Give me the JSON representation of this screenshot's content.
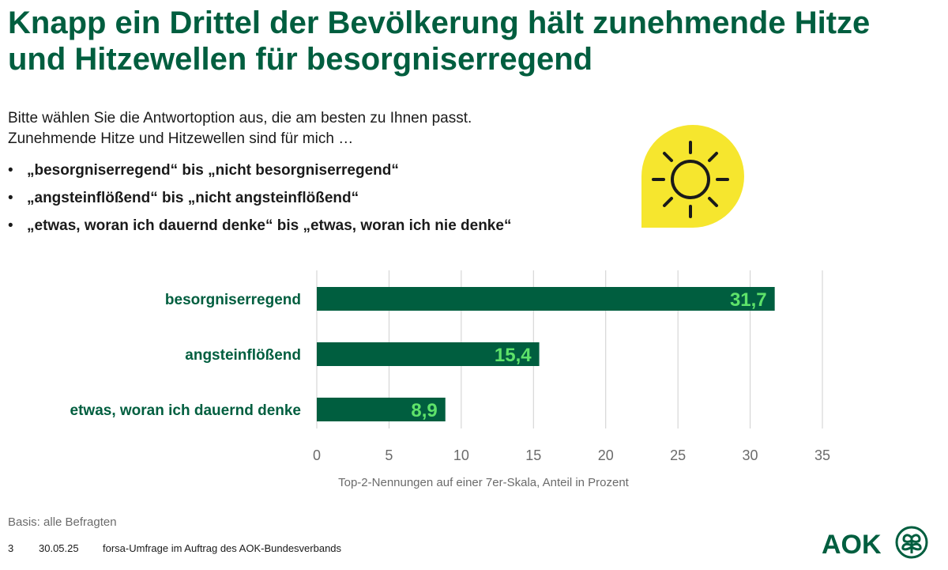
{
  "title": "Knapp ein Drittel der Bevölkerung hält zunehmende Hitze und Hitzewellen für besorgniserregend",
  "intro": {
    "line1": "Bitte wählen Sie die Antwortoption aus, die am besten zu Ihnen passt.",
    "line2": "Zunehmende Hitze und Hitzewellen sind für mich …"
  },
  "bullets": [
    "„besorgniserregend“ bis „nicht besorgniserregend“",
    "„angsteinflößend“ bis „nicht angsteinflößend“",
    "„etwas, woran ich dauernd denke“ bis „etwas, woran ich nie denke“"
  ],
  "chart_data": {
    "type": "bar",
    "orientation": "horizontal",
    "categories": [
      "besorgniserregend",
      "angsteinflößend",
      "etwas, woran ich dauernd denke"
    ],
    "values": [
      31.7,
      15.4,
      8.9
    ],
    "value_labels": [
      "31,7",
      "15,4",
      "8,9"
    ],
    "xlim": [
      0,
      35
    ],
    "xticks": [
      0,
      5,
      10,
      15,
      20,
      25,
      30,
      35
    ],
    "xlabel": "Top-2-Nennungen auf einer 7er-Skala, Anteil in Prozent",
    "grid": "vertical",
    "colors": {
      "bar": "#005e3f",
      "value_label": "#5ee36a",
      "category_label": "#005e3f",
      "grid": "#cfcfcf",
      "tick": "#6b6b6b"
    }
  },
  "basis": "Basis: alle Befragten",
  "footer": {
    "page": "3",
    "date": "30.05.25",
    "source": "forsa-Umfrage im Auftrag des AOK-Bundesverbands"
  },
  "logo": {
    "text": "AOK",
    "color": "#005e3f"
  },
  "sun_icon": {
    "name": "sun-icon",
    "bg": "#f6e62e",
    "stroke": "#1a1a1a"
  }
}
